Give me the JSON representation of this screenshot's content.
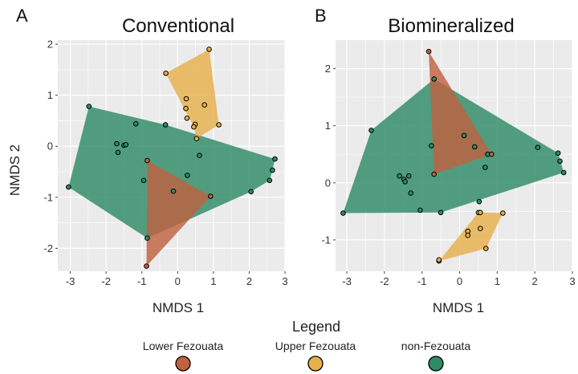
{
  "colors": {
    "Lower Fezouata": "#c0613f",
    "Upper Fezouata": "#e6b04c",
    "non-Fezouata": "#2e8a67",
    "panel_bg": "#ebebeb",
    "grid": "#ffffff"
  },
  "chart_data": [
    {
      "type": "scatter",
      "letter": "A",
      "title": "Conventional",
      "xlabel": "NMDS 1",
      "ylabel": "NMDS 2",
      "xlim": [
        -3.35,
        3.0
      ],
      "ylim": [
        -2.45,
        2.08
      ],
      "xticks": [
        -3,
        -2,
        -1,
        0,
        1,
        2,
        3
      ],
      "yticks": [
        -2,
        -1,
        0,
        1,
        2
      ],
      "grid": true,
      "series": [
        {
          "name": "non-Fezouata",
          "points": [
            [
              -2.48,
              0.78
            ],
            [
              -3.05,
              -0.8
            ],
            [
              -1.7,
              0.05
            ],
            [
              -1.5,
              0.02
            ],
            [
              -1.45,
              0.03
            ],
            [
              -1.67,
              -0.12
            ],
            [
              -1.17,
              0.44
            ],
            [
              -0.95,
              -0.67
            ],
            [
              -0.34,
              0.42
            ],
            [
              -0.85,
              -1.8
            ],
            [
              -0.12,
              -0.88
            ],
            [
              0.27,
              -0.57
            ],
            [
              0.61,
              -0.18
            ],
            [
              2.05,
              -0.89
            ],
            [
              2.57,
              -0.67
            ],
            [
              2.65,
              -0.47
            ],
            [
              2.72,
              -0.25
            ]
          ],
          "hull": [
            [
              -2.48,
              0.78
            ],
            [
              -0.34,
              0.42
            ],
            [
              2.72,
              -0.25
            ],
            [
              2.65,
              -0.47
            ],
            [
              2.57,
              -0.67
            ],
            [
              2.05,
              -0.89
            ],
            [
              -0.85,
              -1.8
            ],
            [
              -3.05,
              -0.8
            ]
          ]
        },
        {
          "name": "Upper Fezouata",
          "points": [
            [
              0.88,
              1.9
            ],
            [
              -0.33,
              1.43
            ],
            [
              0.24,
              0.93
            ],
            [
              0.75,
              0.81
            ],
            [
              0.23,
              0.74
            ],
            [
              0.26,
              0.55
            ],
            [
              0.49,
              0.43
            ],
            [
              0.45,
              0.38
            ],
            [
              1.15,
              0.42
            ],
            [
              0.53,
              0.15
            ]
          ],
          "hull": [
            [
              0.88,
              1.9
            ],
            [
              1.15,
              0.42
            ],
            [
              0.53,
              0.15
            ],
            [
              0.45,
              0.38
            ],
            [
              -0.33,
              1.43
            ]
          ]
        },
        {
          "name": "Lower Fezouata",
          "points": [
            [
              -0.87,
              -2.35
            ],
            [
              0.92,
              -0.98
            ],
            [
              -0.85,
              -0.28
            ]
          ],
          "hull": [
            [
              -0.85,
              -0.28
            ],
            [
              0.92,
              -0.98
            ],
            [
              -0.87,
              -2.35
            ]
          ]
        }
      ]
    },
    {
      "type": "scatter",
      "letter": "B",
      "title": "Biomineralized",
      "xlabel": "NMDS 1",
      "ylabel": "",
      "xlim": [
        -3.3,
        3.0
      ],
      "ylim": [
        -1.55,
        2.5
      ],
      "xticks": [
        -3,
        -2,
        -1,
        0,
        1,
        2,
        3
      ],
      "yticks": [
        -1,
        0,
        1,
        2
      ],
      "grid": true,
      "series": [
        {
          "name": "non-Fezouata",
          "points": [
            [
              -0.68,
              1.82
            ],
            [
              -2.35,
              0.92
            ],
            [
              -3.1,
              -0.53
            ],
            [
              -1.6,
              0.12
            ],
            [
              -1.35,
              0.12
            ],
            [
              -1.48,
              0.06
            ],
            [
              -1.45,
              0.02
            ],
            [
              -1.3,
              -0.18
            ],
            [
              -1.05,
              -0.48
            ],
            [
              -0.75,
              0.65
            ],
            [
              -0.5,
              -0.52
            ],
            [
              0.12,
              0.83
            ],
            [
              0.4,
              0.63
            ],
            [
              0.52,
              -0.33
            ],
            [
              0.68,
              0.27
            ],
            [
              0.75,
              0.5
            ],
            [
              2.08,
              0.62
            ],
            [
              2.62,
              0.52
            ],
            [
              2.67,
              0.38
            ],
            [
              2.77,
              0.18
            ]
          ],
          "hull": [
            [
              -0.68,
              1.82
            ],
            [
              2.62,
              0.52
            ],
            [
              2.77,
              0.18
            ],
            [
              -0.5,
              -0.52
            ],
            [
              -3.1,
              -0.53
            ],
            [
              -2.35,
              0.92
            ]
          ]
        },
        {
          "name": "Upper Fezouata",
          "points": [
            [
              -0.55,
              -1.37
            ],
            [
              -0.55,
              -1.35
            ],
            [
              0.22,
              -0.85
            ],
            [
              0.22,
              -0.92
            ],
            [
              0.5,
              -0.52
            ],
            [
              0.55,
              -0.52
            ],
            [
              0.55,
              -0.8
            ],
            [
              0.7,
              -1.15
            ],
            [
              1.15,
              -0.53
            ]
          ],
          "hull": [
            [
              0.5,
              -0.52
            ],
            [
              1.15,
              -0.53
            ],
            [
              0.7,
              -1.15
            ],
            [
              -0.55,
              -1.37
            ]
          ]
        },
        {
          "name": "Lower Fezouata",
          "points": [
            [
              -0.82,
              2.3
            ],
            [
              -0.68,
              0.15
            ],
            [
              0.85,
              0.5
            ]
          ],
          "hull": [
            [
              -0.82,
              2.3
            ],
            [
              0.85,
              0.5
            ],
            [
              -0.68,
              0.15
            ]
          ]
        }
      ]
    }
  ],
  "legend": {
    "title": "Legend",
    "items": [
      {
        "label": "Lower Fezouata",
        "color": "#c0613f"
      },
      {
        "label": "Upper Fezouata",
        "color": "#e6b04c"
      },
      {
        "label": "non-Fezouata",
        "color": "#2e8a67"
      }
    ]
  }
}
